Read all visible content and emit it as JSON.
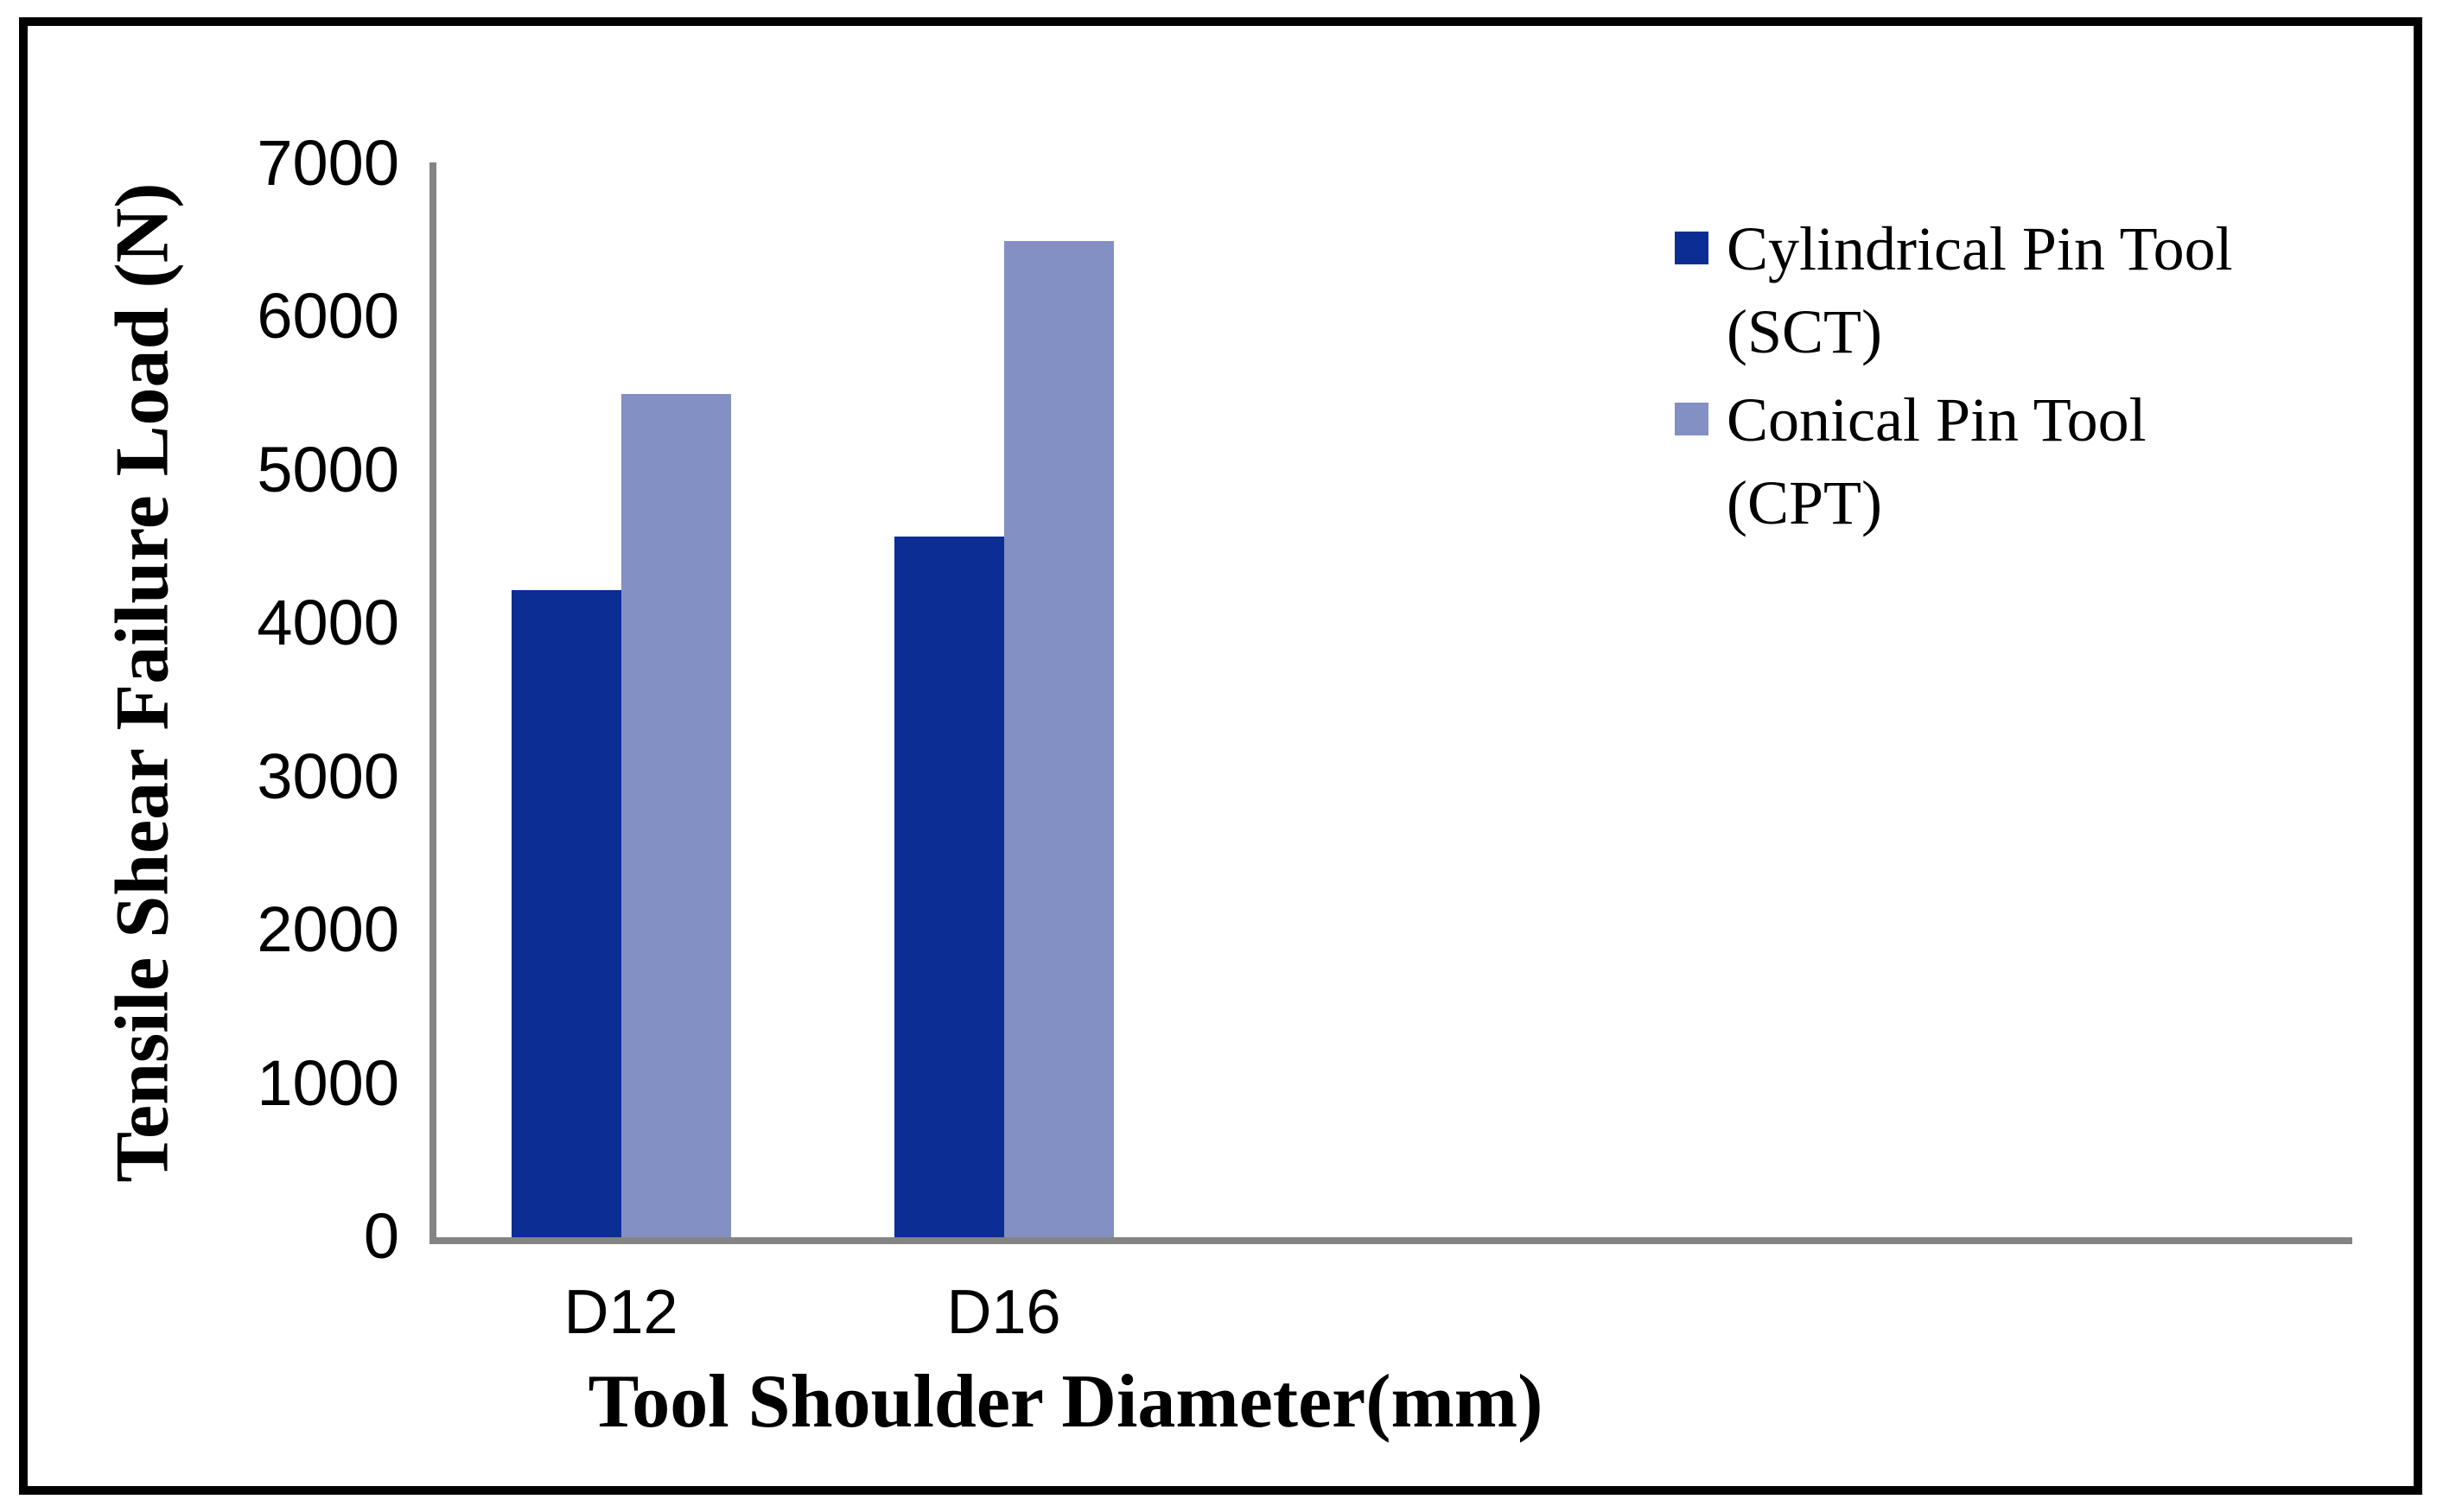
{
  "figure": {
    "background": "#ffffff",
    "border_color": "#000000"
  },
  "axes": {
    "x_title": "Tool Shoulder Diameter(mm)",
    "y_title": "Tensile Shear Failure Load (N)",
    "axis_line_color": "#848484"
  },
  "legend": {
    "items": [
      {
        "lines": [
          "Cylindrical Pin Tool",
          "(SCT)"
        ],
        "color": "#0b2d94"
      },
      {
        "lines": [
          "Conical Pin Tool",
          "(CPT)"
        ],
        "color": "#8390c4"
      }
    ]
  },
  "chart_data": {
    "type": "bar",
    "categories": [
      "D12",
      "D16"
    ],
    "series": [
      {
        "name": "Cylindrical Pin Tool (SCT)",
        "color": "#0b2d94",
        "values": [
          4220,
          4570
        ]
      },
      {
        "name": "Conical Pin Tool (CPT)",
        "color": "#8390c4",
        "values": [
          5500,
          6500
        ]
      }
    ],
    "title": "",
    "xlabel": "Tool Shoulder Diameter(mm)",
    "ylabel": "Tensile Shear Failure Load (N)",
    "ylim": [
      0,
      7000
    ],
    "ytick_step": 1000,
    "yticks": [
      0,
      1000,
      2000,
      3000,
      4000,
      5000,
      6000,
      7000
    ],
    "legend_position": "right",
    "grid": false
  }
}
